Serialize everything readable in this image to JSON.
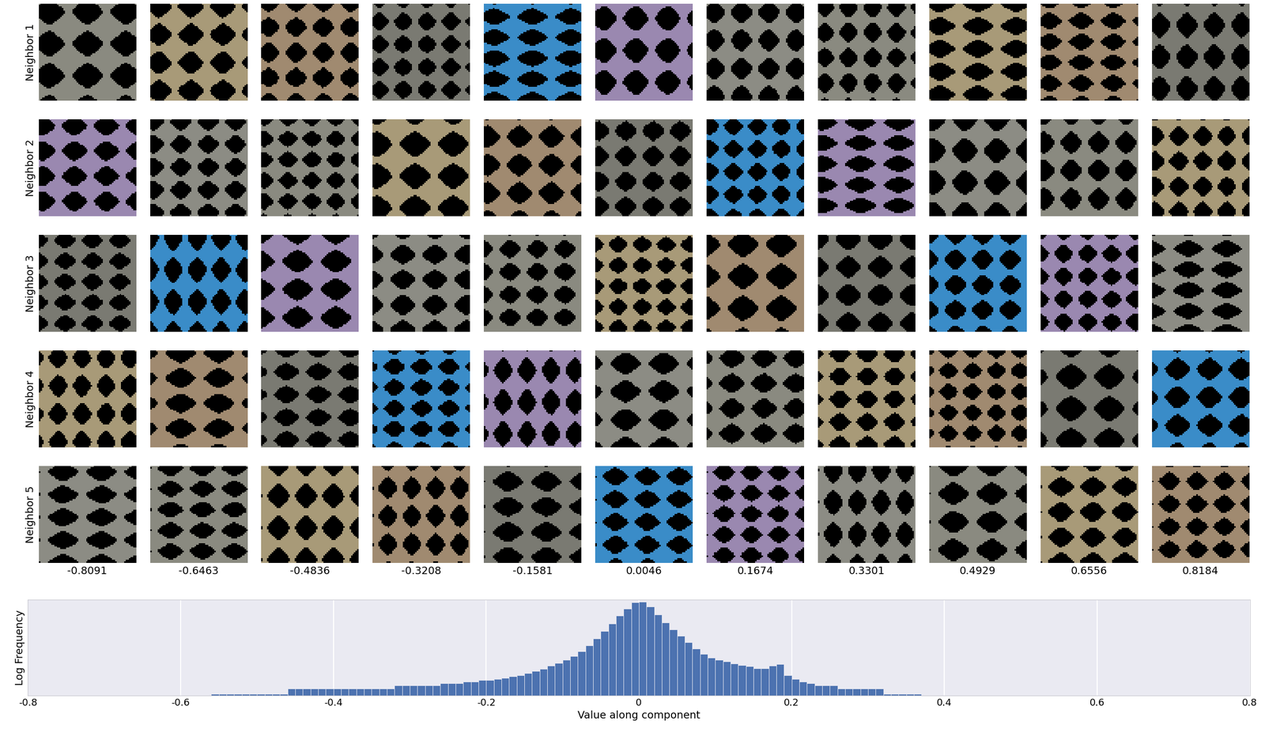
{
  "image_grid": {
    "row_labels": [
      "Neighbor 1",
      "Neighbor 2",
      "Neighbor 3",
      "Neighbor 4",
      "Neighbor 5"
    ],
    "column_values": [
      -0.8091,
      -0.6463,
      -0.4836,
      -0.3208,
      -0.1581,
      0.0046,
      0.1674,
      0.3301,
      0.4929,
      0.6556,
      0.8184
    ]
  },
  "chart_data": {
    "type": "histogram",
    "log": "y",
    "grid": true,
    "tick_labels": "x",
    "xlabel": "Value along component",
    "ylabel": "Log Frequency",
    "color": "#4c72b0",
    "xlim": [
      -0.8,
      0.8
    ],
    "xticks": [
      -0.8,
      -0.6,
      -0.4,
      -0.2,
      0,
      0.2,
      0.4,
      0.6,
      0.8
    ],
    "ylim": [
      0.8,
      250000
    ],
    "bins": [
      -0.56,
      -0.55,
      -0.54,
      -0.53,
      -0.52,
      -0.51,
      -0.5,
      -0.49,
      -0.48,
      -0.47,
      -0.46,
      -0.45,
      -0.44,
      -0.43,
      -0.42,
      -0.41,
      -0.4,
      -0.39,
      -0.38,
      -0.37,
      -0.36,
      -0.35,
      -0.34,
      -0.33,
      -0.32,
      -0.31,
      -0.3,
      -0.29,
      -0.28,
      -0.27,
      -0.26,
      -0.25,
      -0.24,
      -0.23,
      -0.22,
      -0.21,
      -0.2,
      -0.19,
      -0.18,
      -0.17,
      -0.16,
      -0.15,
      -0.14,
      -0.13,
      -0.12,
      -0.11,
      -0.1,
      -0.09,
      -0.08,
      -0.07,
      -0.06,
      -0.05,
      -0.04,
      -0.03,
      -0.02,
      -0.01,
      0.0,
      0.01,
      0.02,
      0.03,
      0.04,
      0.05,
      0.06,
      0.07,
      0.08,
      0.09,
      0.1,
      0.11,
      0.12,
      0.13,
      0.14,
      0.15,
      0.16,
      0.17,
      0.18,
      0.19,
      0.2,
      0.21,
      0.22,
      0.23,
      0.24,
      0.25,
      0.26,
      0.27,
      0.28,
      0.29,
      0.3,
      0.31,
      0.32,
      0.33,
      0.34,
      0.35,
      0.36,
      0.37
    ],
    "counts": [
      1,
      1,
      1,
      1,
      1,
      1,
      1,
      1,
      1,
      1,
      2,
      2,
      2,
      2,
      2,
      2,
      2,
      2,
      2,
      2,
      2,
      2,
      2,
      2,
      3,
      3,
      3,
      3,
      3,
      3,
      4,
      4,
      4,
      5,
      5,
      6,
      6,
      7,
      8,
      10,
      12,
      15,
      20,
      27,
      40,
      60,
      90,
      150,
      280,
      600,
      1500,
      4000,
      11000,
      30000,
      80000,
      180000,
      190000,
      100000,
      35000,
      12000,
      5000,
      2200,
      900,
      400,
      200,
      120,
      90,
      70,
      55,
      45,
      38,
      30,
      30,
      40,
      50,
      12,
      7,
      5,
      4,
      3,
      3,
      3,
      2,
      2,
      2,
      2,
      2,
      2,
      1,
      1,
      1,
      1,
      1
    ]
  }
}
